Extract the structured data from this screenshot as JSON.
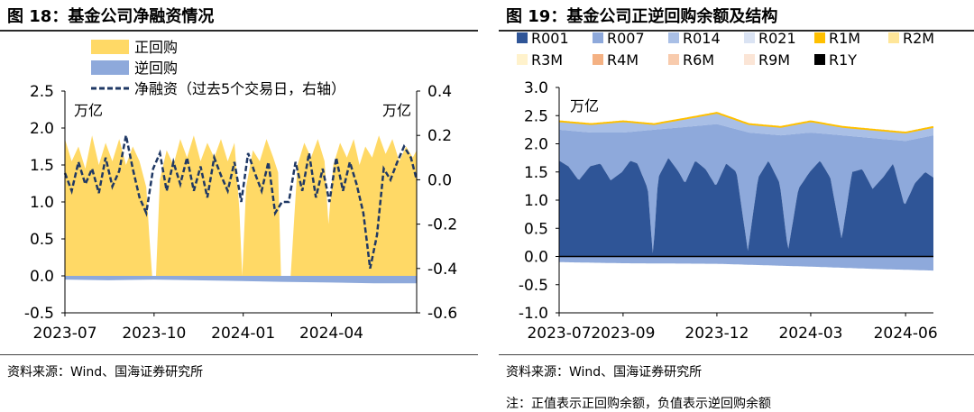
{
  "left": {
    "title": "图 18：基金公司净融资情况",
    "source": "资料来源：Wind、国海证券研究所",
    "chart_data": {
      "type": "area",
      "legend": [
        "正回购",
        "逆回购",
        "净融资（过去5个交易日，右轴）"
      ],
      "left_unit": "万亿",
      "right_unit": "万亿",
      "y_left_ticks": [
        "2.5",
        "2.0",
        "1.5",
        "1.0",
        "0.5",
        "0.0",
        "-0.5"
      ],
      "y_right_ticks": [
        "0.4",
        "0.2",
        "0.0",
        "-0.2",
        "-0.4",
        "-0.6"
      ],
      "ylim_left": [
        -0.5,
        2.5
      ],
      "ylim_right": [
        -0.6,
        0.4
      ],
      "x_ticks": [
        "2023-07",
        "2023-10",
        "2024-01",
        "2024-04"
      ],
      "x_tick_dates": [
        "2023-07-01",
        "2023-10-01",
        "2024-01-01",
        "2024-04-01"
      ],
      "x_range": [
        "2023-07-01",
        "2024-06-28"
      ],
      "colors": {
        "positive": "#FFD966",
        "reverse": "#8EA9DB",
        "net": "#1F3864"
      },
      "positive": {
        "dates": [
          "2023-07-01",
          "2023-07-08",
          "2023-07-15",
          "2023-07-22",
          "2023-07-29",
          "2023-08-05",
          "2023-08-12",
          "2023-08-19",
          "2023-08-26",
          "2023-09-02",
          "2023-09-09",
          "2023-09-16",
          "2023-09-23",
          "2023-09-26",
          "2023-09-29",
          "2023-10-03",
          "2023-10-07",
          "2023-10-14",
          "2023-10-21",
          "2023-10-28",
          "2023-11-04",
          "2023-11-11",
          "2023-11-18",
          "2023-11-25",
          "2023-12-02",
          "2023-12-09",
          "2023-12-16",
          "2023-12-23",
          "2023-12-28",
          "2023-12-31",
          "2024-01-04",
          "2024-01-11",
          "2024-01-18",
          "2024-01-25",
          "2024-02-01",
          "2024-02-06",
          "2024-02-09",
          "2024-02-19",
          "2024-02-26",
          "2024-03-04",
          "2024-03-11",
          "2024-03-18",
          "2024-03-25",
          "2024-03-29",
          "2024-04-03",
          "2024-04-10",
          "2024-04-17",
          "2024-04-24",
          "2024-04-30",
          "2024-05-06",
          "2024-05-13",
          "2024-05-20",
          "2024-05-27",
          "2024-06-03",
          "2024-06-10",
          "2024-06-17",
          "2024-06-24",
          "2024-06-28"
        ],
        "values": [
          1.85,
          1.55,
          1.75,
          1.45,
          1.9,
          1.5,
          1.8,
          1.55,
          1.85,
          1.5,
          1.75,
          1.55,
          1.2,
          0.55,
          0.0,
          0.0,
          1.3,
          1.7,
          1.5,
          1.85,
          1.6,
          1.9,
          1.55,
          1.8,
          1.6,
          1.85,
          1.55,
          1.8,
          0.9,
          0.0,
          1.2,
          1.7,
          1.55,
          1.85,
          1.6,
          1.4,
          0.0,
          0.0,
          1.5,
          1.8,
          1.6,
          1.85,
          1.55,
          0.7,
          1.5,
          1.8,
          1.6,
          1.85,
          1.5,
          1.75,
          1.6,
          1.9,
          1.65,
          1.85,
          1.55,
          1.75,
          1.6,
          1.7
        ]
      },
      "reverse": {
        "dates": [
          "2023-07-01",
          "2023-08-15",
          "2023-10-01",
          "2023-12-31",
          "2024-02-09",
          "2024-04-01",
          "2024-05-15",
          "2024-06-28"
        ],
        "values": [
          -0.05,
          -0.06,
          -0.05,
          -0.07,
          -0.08,
          -0.09,
          -0.1,
          -0.1
        ]
      },
      "net": {
        "dates": [
          "2023-07-01",
          "2023-07-08",
          "2023-07-15",
          "2023-07-22",
          "2023-07-29",
          "2023-08-05",
          "2023-08-12",
          "2023-08-19",
          "2023-08-26",
          "2023-09-02",
          "2023-09-09",
          "2023-09-16",
          "2023-09-23",
          "2023-09-30",
          "2023-10-07",
          "2023-10-14",
          "2023-10-21",
          "2023-10-28",
          "2023-11-04",
          "2023-11-11",
          "2023-11-18",
          "2023-11-25",
          "2023-12-02",
          "2023-12-09",
          "2023-12-16",
          "2023-12-23",
          "2023-12-30",
          "2024-01-06",
          "2024-01-13",
          "2024-01-20",
          "2024-01-27",
          "2024-02-03",
          "2024-02-10",
          "2024-02-17",
          "2024-02-24",
          "2024-03-02",
          "2024-03-09",
          "2024-03-16",
          "2024-03-23",
          "2024-03-30",
          "2024-04-06",
          "2024-04-13",
          "2024-04-20",
          "2024-04-27",
          "2024-05-04",
          "2024-05-11",
          "2024-05-18",
          "2024-05-25",
          "2024-06-01",
          "2024-06-08",
          "2024-06-15",
          "2024-06-22",
          "2024-06-28"
        ],
        "values": [
          0.03,
          -0.05,
          0.08,
          -0.02,
          0.05,
          -0.06,
          0.1,
          -0.03,
          0.04,
          0.2,
          0.05,
          -0.08,
          -0.15,
          0.05,
          0.12,
          -0.05,
          0.08,
          -0.02,
          0.1,
          -0.05,
          0.06,
          -0.08,
          0.1,
          0.02,
          -0.05,
          0.08,
          -0.1,
          0.12,
          0.03,
          -0.05,
          0.08,
          -0.15,
          -0.1,
          -0.1,
          0.08,
          -0.05,
          0.12,
          -0.08,
          0.05,
          -0.1,
          0.1,
          -0.05,
          0.08,
          -0.02,
          -0.15,
          -0.4,
          -0.25,
          0.05,
          0.0,
          0.08,
          0.15,
          0.1,
          0.0
        ]
      }
    }
  },
  "right": {
    "title": "图 19：基金公司正逆回购余额及结构",
    "source": "资料来源：Wind、国海证券研究所",
    "note": "注：正值表示正回购余额，负值表示逆回购余额",
    "chart_data": {
      "type": "area",
      "unit": "万亿",
      "legend": [
        {
          "name": "R001",
          "color": "#2F5597"
        },
        {
          "name": "R007",
          "color": "#8EA9DB"
        },
        {
          "name": "R014",
          "color": "#A9BFE6"
        },
        {
          "name": "R021",
          "color": "#DAE3F3"
        },
        {
          "name": "R1M",
          "color": "#FFC000"
        },
        {
          "name": "R2M",
          "color": "#FFE699"
        },
        {
          "name": "R3M",
          "color": "#FFF2CC"
        },
        {
          "name": "R4M",
          "color": "#F4B183"
        },
        {
          "name": "R6M",
          "color": "#F8CBAD"
        },
        {
          "name": "R9M",
          "color": "#FBE5D6"
        },
        {
          "name": "R1Y",
          "color": "#000000"
        }
      ],
      "y_ticks": [
        "3.0",
        "2.5",
        "2.0",
        "1.5",
        "1.0",
        "0.5",
        "0.0",
        "-0.5",
        "-1.0"
      ],
      "ylim": [
        -1.0,
        3.0
      ],
      "x_ticks": [
        "2023-07",
        "2023-09",
        "2023-12",
        "2024-03",
        "2024-06"
      ],
      "x_tick_dates": [
        "2023-07-01",
        "2023-09-01",
        "2023-12-01",
        "2024-03-01",
        "2024-06-01"
      ],
      "x_range": [
        "2023-07-01",
        "2024-06-28"
      ],
      "total": {
        "dates": [
          "2023-07-01",
          "2023-08-01",
          "2023-09-01",
          "2023-10-01",
          "2023-11-01",
          "2023-12-01",
          "2024-01-01",
          "2024-02-01",
          "2024-03-01",
          "2024-04-01",
          "2024-05-01",
          "2024-06-01",
          "2024-06-28"
        ],
        "values": [
          2.4,
          2.35,
          2.4,
          2.35,
          2.45,
          2.55,
          2.35,
          2.3,
          2.4,
          2.3,
          2.25,
          2.2,
          2.3
        ]
      },
      "r014_top": {
        "dates": [
          "2023-07-01",
          "2023-08-01",
          "2023-09-01",
          "2023-10-01",
          "2023-11-01",
          "2023-12-01",
          "2024-01-01",
          "2024-02-01",
          "2024-03-01",
          "2024-04-01",
          "2024-05-01",
          "2024-06-01",
          "2024-06-28"
        ],
        "values": [
          2.25,
          2.2,
          2.2,
          2.25,
          2.3,
          2.35,
          2.2,
          2.15,
          2.2,
          2.15,
          2.1,
          2.05,
          2.15
        ]
      },
      "r001": {
        "dates": [
          "2023-07-01",
          "2023-07-10",
          "2023-07-20",
          "2023-07-31",
          "2023-08-10",
          "2023-08-20",
          "2023-08-31",
          "2023-09-08",
          "2023-09-15",
          "2023-09-25",
          "2023-09-30",
          "2023-10-05",
          "2023-10-15",
          "2023-10-25",
          "2023-10-31",
          "2023-11-10",
          "2023-11-20",
          "2023-11-30",
          "2023-12-10",
          "2023-12-20",
          "2023-12-31",
          "2024-01-10",
          "2024-01-20",
          "2024-01-31",
          "2024-02-08",
          "2024-02-18",
          "2024-02-29",
          "2024-03-10",
          "2024-03-20",
          "2024-03-31",
          "2024-04-10",
          "2024-04-20",
          "2024-04-30",
          "2024-05-10",
          "2024-05-20",
          "2024-05-31",
          "2024-06-10",
          "2024-06-20",
          "2024-06-28"
        ],
        "values": [
          1.7,
          1.6,
          1.35,
          1.6,
          1.65,
          1.35,
          1.5,
          1.7,
          1.65,
          1.2,
          0.0,
          1.4,
          1.75,
          1.5,
          1.3,
          1.7,
          1.55,
          1.25,
          1.65,
          1.5,
          0.1,
          1.4,
          1.7,
          1.3,
          0.1,
          1.2,
          1.5,
          1.7,
          1.4,
          0.3,
          1.5,
          1.55,
          1.2,
          1.4,
          1.65,
          0.9,
          1.3,
          1.5,
          1.4
        ]
      },
      "reverse": {
        "dates": [
          "2023-07-01",
          "2023-09-01",
          "2023-12-01",
          "2024-03-01",
          "2024-05-01",
          "2024-06-28"
        ],
        "values": [
          -0.1,
          -0.12,
          -0.13,
          -0.18,
          -0.22,
          -0.25
        ]
      }
    }
  }
}
